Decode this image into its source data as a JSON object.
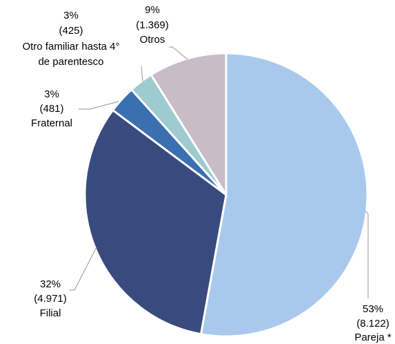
{
  "chart_data": {
    "type": "pie",
    "categories": [
      "Pareja *",
      "Filial",
      "Fraternal",
      "Otro familiar hasta 4°|de parentesco",
      "Otros"
    ],
    "values": [
      8122,
      4971,
      481,
      425,
      1369
    ],
    "value_labels": [
      "(8.122)",
      "(4.971)",
      "(481)",
      "(425)",
      "(1.369)"
    ],
    "percent_labels": [
      "53%",
      "32%",
      "3%",
      "3%",
      "9%"
    ],
    "colors": [
      "#a9c9ec",
      "#394b7e",
      "#3a6fb0",
      "#9ecbd0",
      "#c8bcc8"
    ]
  }
}
